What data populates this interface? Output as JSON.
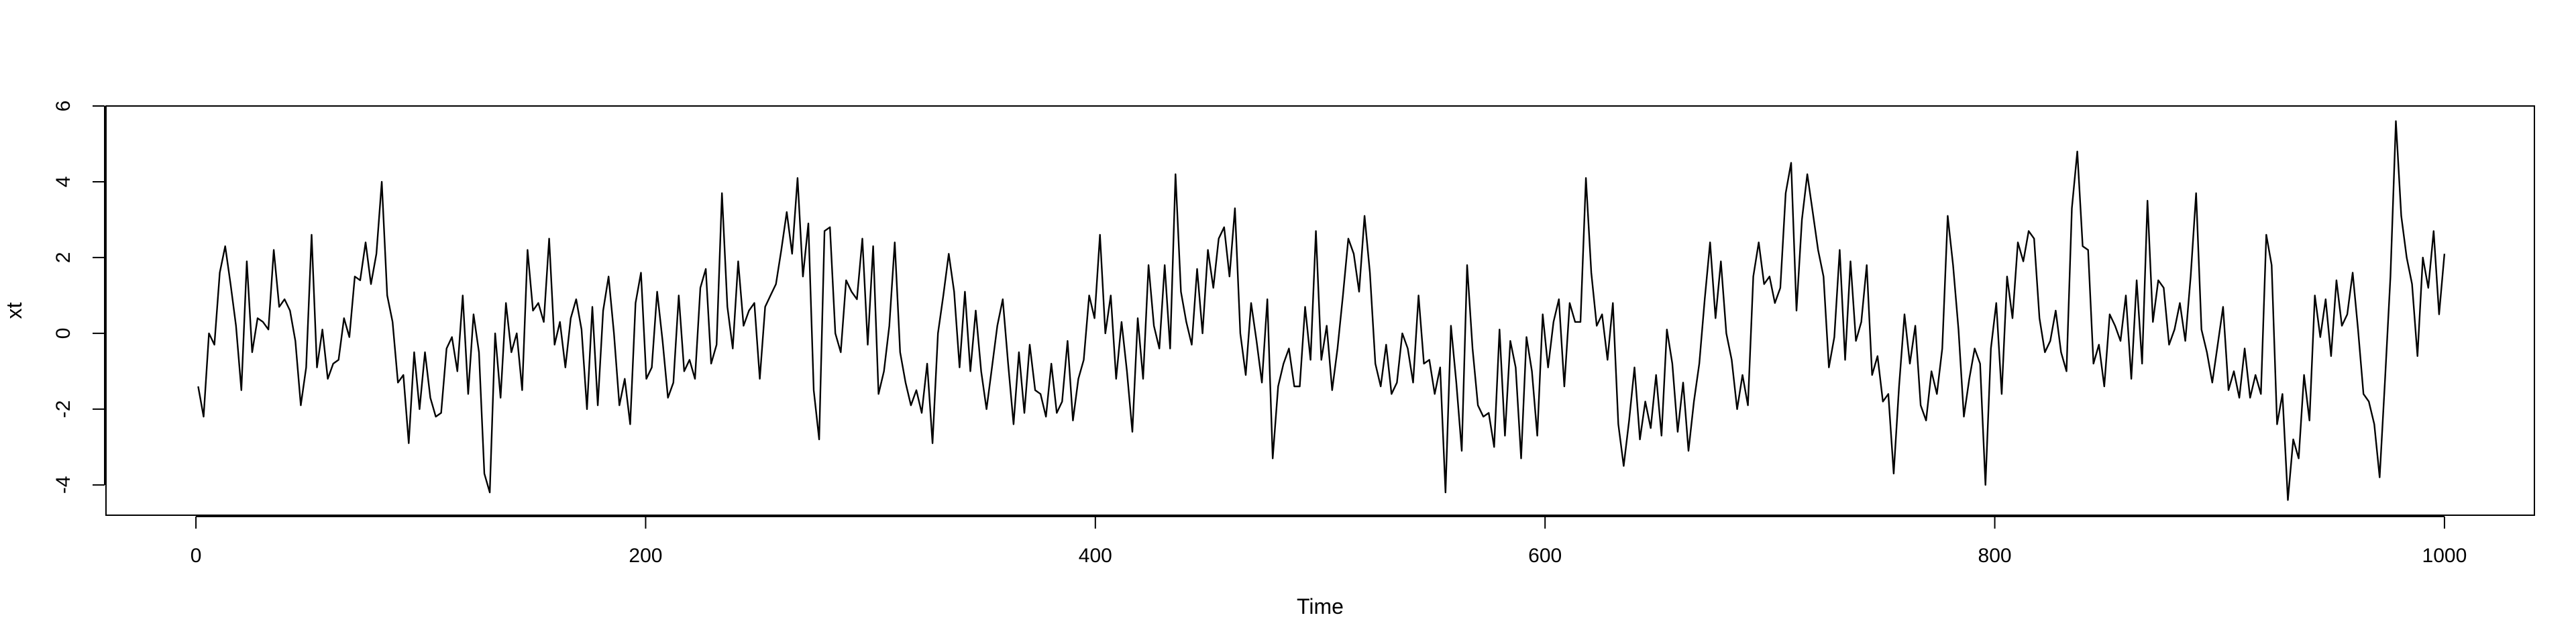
{
  "chart_data": {
    "type": "line",
    "title": "",
    "xlabel": "Time",
    "ylabel": "xt",
    "xlim": [
      -40,
      1040
    ],
    "ylim": [
      -4.8,
      6.0
    ],
    "x_ticks": [
      0,
      200,
      400,
      600,
      800,
      1000
    ],
    "y_ticks": [
      -4,
      -2,
      0,
      2,
      4,
      6
    ],
    "grid": false,
    "series": [
      {
        "name": "xt",
        "x_start": 1,
        "x_end": 1000,
        "samples_per_point": 5,
        "values": [
          -1.4,
          -2.2,
          0.0,
          -0.3,
          1.6,
          2.3,
          1.3,
          0.2,
          -1.5,
          1.9,
          -0.5,
          0.4,
          0.3,
          0.1,
          2.2,
          0.7,
          0.9,
          0.6,
          -0.2,
          -1.9,
          -0.9,
          2.6,
          -0.9,
          0.1,
          -1.2,
          -0.8,
          -0.7,
          0.4,
          -0.1,
          1.5,
          1.4,
          2.4,
          1.3,
          2.1,
          4.0,
          1.0,
          0.3,
          -1.3,
          -1.1,
          -2.9,
          -0.5,
          -2.0,
          -0.5,
          -1.7,
          -2.2,
          -2.1,
          -0.4,
          -0.1,
          -1.0,
          1.0,
          -1.6,
          0.5,
          -0.5,
          -3.7,
          -4.2,
          0.0,
          -1.7,
          0.8,
          -0.5,
          0.0,
          -1.5,
          2.2,
          0.6,
          0.8,
          0.3,
          2.5,
          -0.3,
          0.3,
          -0.9,
          0.4,
          0.9,
          0.1,
          -2.0,
          0.7,
          -1.9,
          0.6,
          1.5,
          0.0,
          -1.9,
          -1.2,
          -2.4,
          0.8,
          1.6,
          -1.2,
          -0.9,
          1.1,
          -0.2,
          -1.7,
          -1.3,
          1.0,
          -1.0,
          -0.7,
          -1.2,
          1.2,
          1.7,
          -0.8,
          -0.3,
          3.7,
          0.7,
          -0.4,
          1.9,
          0.2,
          0.6,
          0.8,
          -1.2,
          0.7,
          1.0,
          1.3,
          2.2,
          3.2,
          2.1,
          4.1,
          1.5,
          2.9,
          -1.5,
          -2.8,
          2.7,
          2.8,
          0.0,
          -0.5,
          1.4,
          1.1,
          0.9,
          2.5,
          -0.3,
          2.3,
          -1.6,
          -1.0,
          0.2,
          2.4,
          -0.5,
          -1.3,
          -1.9,
          -1.5,
          -2.1,
          -0.8,
          -2.9,
          0.0,
          1.0,
          2.1,
          1.1,
          -0.9,
          1.1,
          -1.0,
          0.6,
          -1.0,
          -2.0,
          -0.9,
          0.2,
          0.9,
          -0.8,
          -2.4,
          -0.5,
          -2.1,
          -0.3,
          -1.5,
          -1.6,
          -2.2,
          -0.8,
          -2.1,
          -1.8,
          -0.2,
          -2.3,
          -1.2,
          -0.7,
          1.0,
          0.4,
          2.6,
          0.0,
          1.0,
          -1.2,
          0.3,
          -1.0,
          -2.6,
          0.4,
          -1.2,
          1.8,
          0.2,
          -0.4,
          1.8,
          -0.4,
          4.2,
          1.1,
          0.3,
          -0.3,
          1.7,
          0.0,
          2.2,
          1.2,
          2.5,
          2.8,
          1.5,
          3.3,
          0.0,
          -1.1,
          0.8,
          -0.2,
          -1.3,
          0.9,
          -3.3,
          -1.4,
          -0.8,
          -0.4,
          -1.4,
          -1.4,
          0.7,
          -0.7,
          2.7,
          -0.7,
          0.2,
          -1.5,
          -0.4,
          1.0,
          2.5,
          2.1,
          1.1,
          3.1,
          1.6,
          -0.8,
          -1.4,
          -0.3,
          -1.6,
          -1.3,
          0.0,
          -0.4,
          -1.3,
          1.0,
          -0.8,
          -0.7,
          -1.6,
          -0.9,
          -4.2,
          0.2,
          -1.3,
          -3.1,
          1.8,
          -0.4,
          -1.9,
          -2.2,
          -2.1,
          -3.0,
          0.1,
          -2.7,
          -0.2,
          -0.9,
          -3.3,
          -0.1,
          -1.0,
          -2.7,
          0.5,
          -0.9,
          0.3,
          0.9,
          -1.4,
          0.8,
          0.3,
          0.3,
          4.1,
          1.6,
          0.2,
          0.5,
          -0.7,
          0.8,
          -2.4,
          -3.5,
          -2.3,
          -0.9,
          -2.8,
          -1.8,
          -2.5,
          -1.1,
          -2.7,
          0.1,
          -0.8,
          -2.6,
          -1.3,
          -3.1,
          -1.8,
          -0.8,
          0.9,
          2.4,
          0.4,
          1.9,
          0.0,
          -0.7,
          -2.0,
          -1.1,
          -1.9,
          1.5,
          2.4,
          1.3,
          1.5,
          0.8,
          1.2,
          3.7,
          4.5,
          0.6,
          3.0,
          4.2,
          3.2,
          2.2,
          1.5,
          -0.9,
          -0.1,
          2.2,
          -0.7,
          1.9,
          -0.2,
          0.3,
          1.8,
          -1.1,
          -0.6,
          -1.8,
          -1.6,
          -3.7,
          -1.4,
          0.5,
          -0.8,
          0.2,
          -1.9,
          -2.3,
          -1.0,
          -1.6,
          -0.4,
          3.1,
          1.8,
          0.1,
          -2.2,
          -1.2,
          -0.4,
          -0.8,
          -4.0,
          -0.4,
          0.8,
          -1.6,
          1.5,
          0.4,
          2.4,
          1.9,
          2.7,
          2.5,
          0.4,
          -0.5,
          -0.2,
          0.6,
          -0.5,
          -1.0,
          3.3,
          4.8,
          2.3,
          2.2,
          -0.8,
          -0.3,
          -1.4,
          0.5,
          0.2,
          -0.2,
          1.0,
          -1.2,
          1.4,
          -0.8,
          3.5,
          0.3,
          1.4,
          1.2,
          -0.3,
          0.1,
          0.8,
          -0.2,
          1.5,
          3.7,
          0.1,
          -0.5,
          -1.3,
          -0.3,
          0.7,
          -1.5,
          -1.0,
          -1.7,
          -0.4,
          -1.7,
          -1.1,
          -1.6,
          2.6,
          1.8,
          -2.4,
          -1.6,
          -4.4,
          -2.8,
          -3.3,
          -1.1,
          -2.3,
          1.0,
          -0.1,
          0.9,
          -0.6,
          1.4,
          0.2,
          0.5,
          1.6,
          0.1,
          -1.6,
          -1.8,
          -2.4,
          -3.8,
          -1.2,
          1.5,
          5.6,
          3.1,
          2.0,
          1.3,
          -0.6,
          2.0,
          1.2,
          2.7,
          0.5,
          2.1
        ]
      }
    ]
  }
}
